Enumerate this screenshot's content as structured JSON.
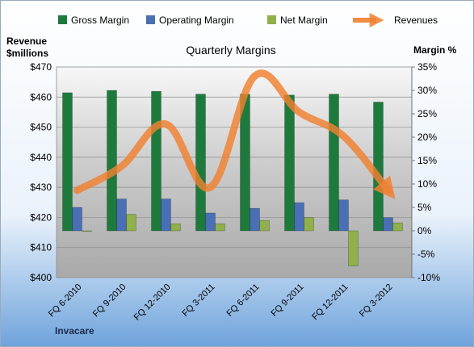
{
  "chart_data": {
    "type": "bar",
    "title": "Quarterly Margins",
    "company": "Invacare",
    "left_axis_label_line1": "Revenue",
    "left_axis_label_line2": "$millions",
    "right_axis_label": "Margin %",
    "categories": [
      "FQ 6-2010",
      "FQ 9-2010",
      "FQ 12-2010",
      "FQ 3-2011",
      "FQ 6-2011",
      "FQ 9-2011",
      "FQ 12-2011",
      "FQ 3-2012"
    ],
    "left_axis": {
      "min": 400,
      "max": 470,
      "step": 10,
      "tick_labels": [
        "$400",
        "$410",
        "$420",
        "$430",
        "$440",
        "$450",
        "$460",
        "$470"
      ]
    },
    "right_axis": {
      "min": -10,
      "max": 35,
      "step": 5,
      "tick_labels": [
        "-10%",
        "-5%",
        "0%",
        "5%",
        "10%",
        "15%",
        "20%",
        "25%",
        "30%",
        "35%"
      ]
    },
    "series": [
      {
        "name": "Gross Margin",
        "axis": "right",
        "kind": "bar",
        "color": "#1e7a3c",
        "values": [
          29.5,
          30.0,
          29.8,
          29.2,
          29.2,
          29.0,
          29.2,
          27.5
        ]
      },
      {
        "name": "Operating Margin",
        "axis": "right",
        "kind": "bar",
        "color": "#4a6fb5",
        "values": [
          5.0,
          6.8,
          6.8,
          3.8,
          4.8,
          6.0,
          6.6,
          2.8
        ]
      },
      {
        "name": "Net Margin",
        "axis": "right",
        "kind": "bar",
        "color": "#8fb04a",
        "values": [
          0.0,
          3.5,
          1.5,
          1.5,
          2.2,
          2.8,
          -7.5,
          1.7
        ]
      },
      {
        "name": "Revenues",
        "axis": "left",
        "kind": "line",
        "color": "#f08030",
        "values": [
          429,
          437,
          451,
          430,
          467,
          455,
          447,
          429
        ]
      }
    ],
    "legend_position": "top",
    "grid": true
  }
}
